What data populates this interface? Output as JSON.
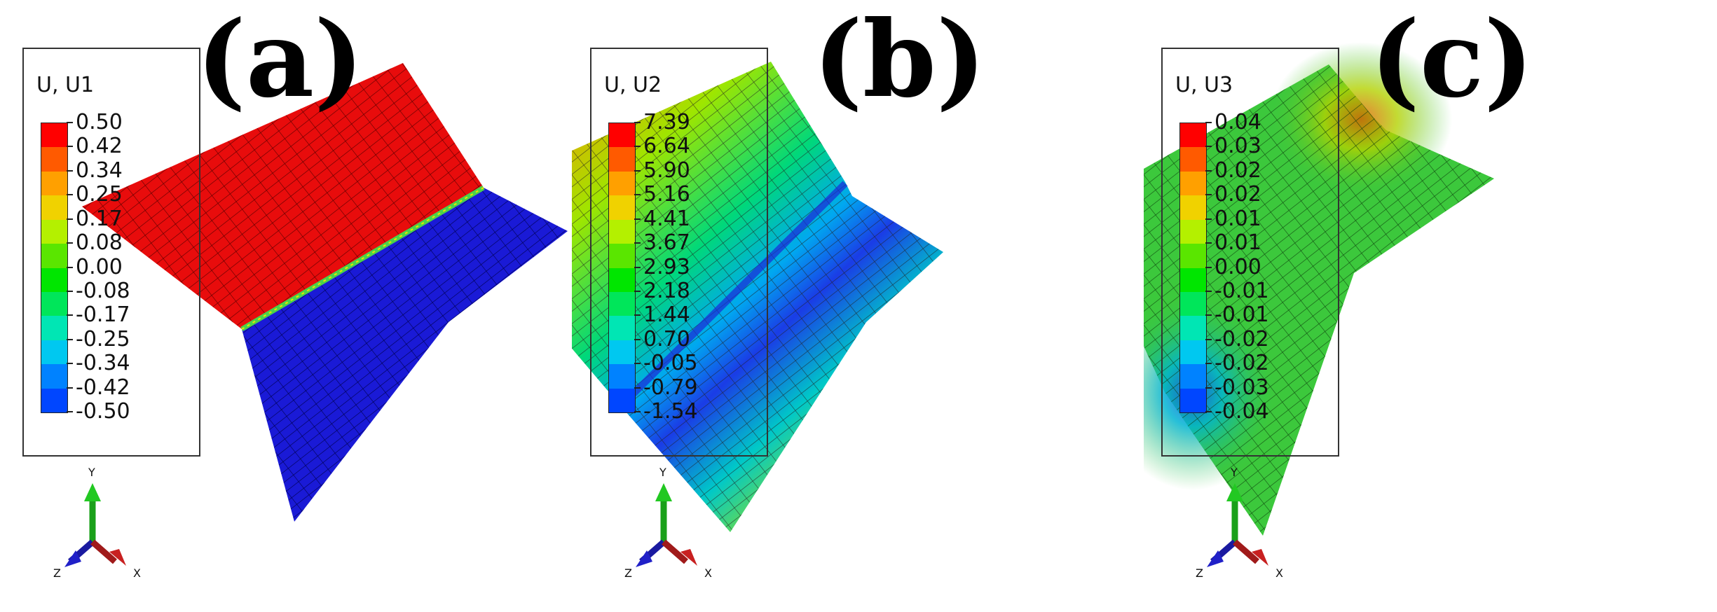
{
  "panels": [
    {
      "label": "(a)",
      "legend_title": "U, U1",
      "legend_values": [
        "0.50",
        "0.42",
        "0.34",
        "0.25",
        "0.17",
        "0.08",
        "0.00",
        "-0.08",
        "-0.17",
        "-0.25",
        "-0.34",
        "-0.42",
        "-0.50"
      ],
      "triad": {
        "y": "Y",
        "z": "Z",
        "x": "X"
      }
    },
    {
      "label": "(b)",
      "legend_title": "U, U2",
      "legend_values": [
        "7.39",
        "6.64",
        "5.90",
        "5.16",
        "4.41",
        "3.67",
        "2.93",
        "2.18",
        "1.44",
        "0.70",
        "-0.05",
        "-0.79",
        "-1.54"
      ],
      "triad": {
        "y": "Y",
        "z": "Z",
        "x": "X"
      }
    },
    {
      "label": "(c)",
      "legend_title": "U, U3",
      "legend_values": [
        "0.04",
        "0.03",
        "0.02",
        "0.02",
        "0.01",
        "0.01",
        "0.00",
        "-0.01",
        "-0.01",
        "-0.02",
        "-0.02",
        "-0.03",
        "-0.04"
      ],
      "triad": {
        "y": "Y",
        "z": "Z",
        "x": "X"
      }
    }
  ],
  "colormap": [
    "#ff0000",
    "#ff5a00",
    "#ffa000",
    "#f0d200",
    "#b4f000",
    "#5ae600",
    "#00e600",
    "#00e65a",
    "#00e6b4",
    "#00c8f0",
    "#0082ff",
    "#0046ff",
    "#0000e6"
  ]
}
